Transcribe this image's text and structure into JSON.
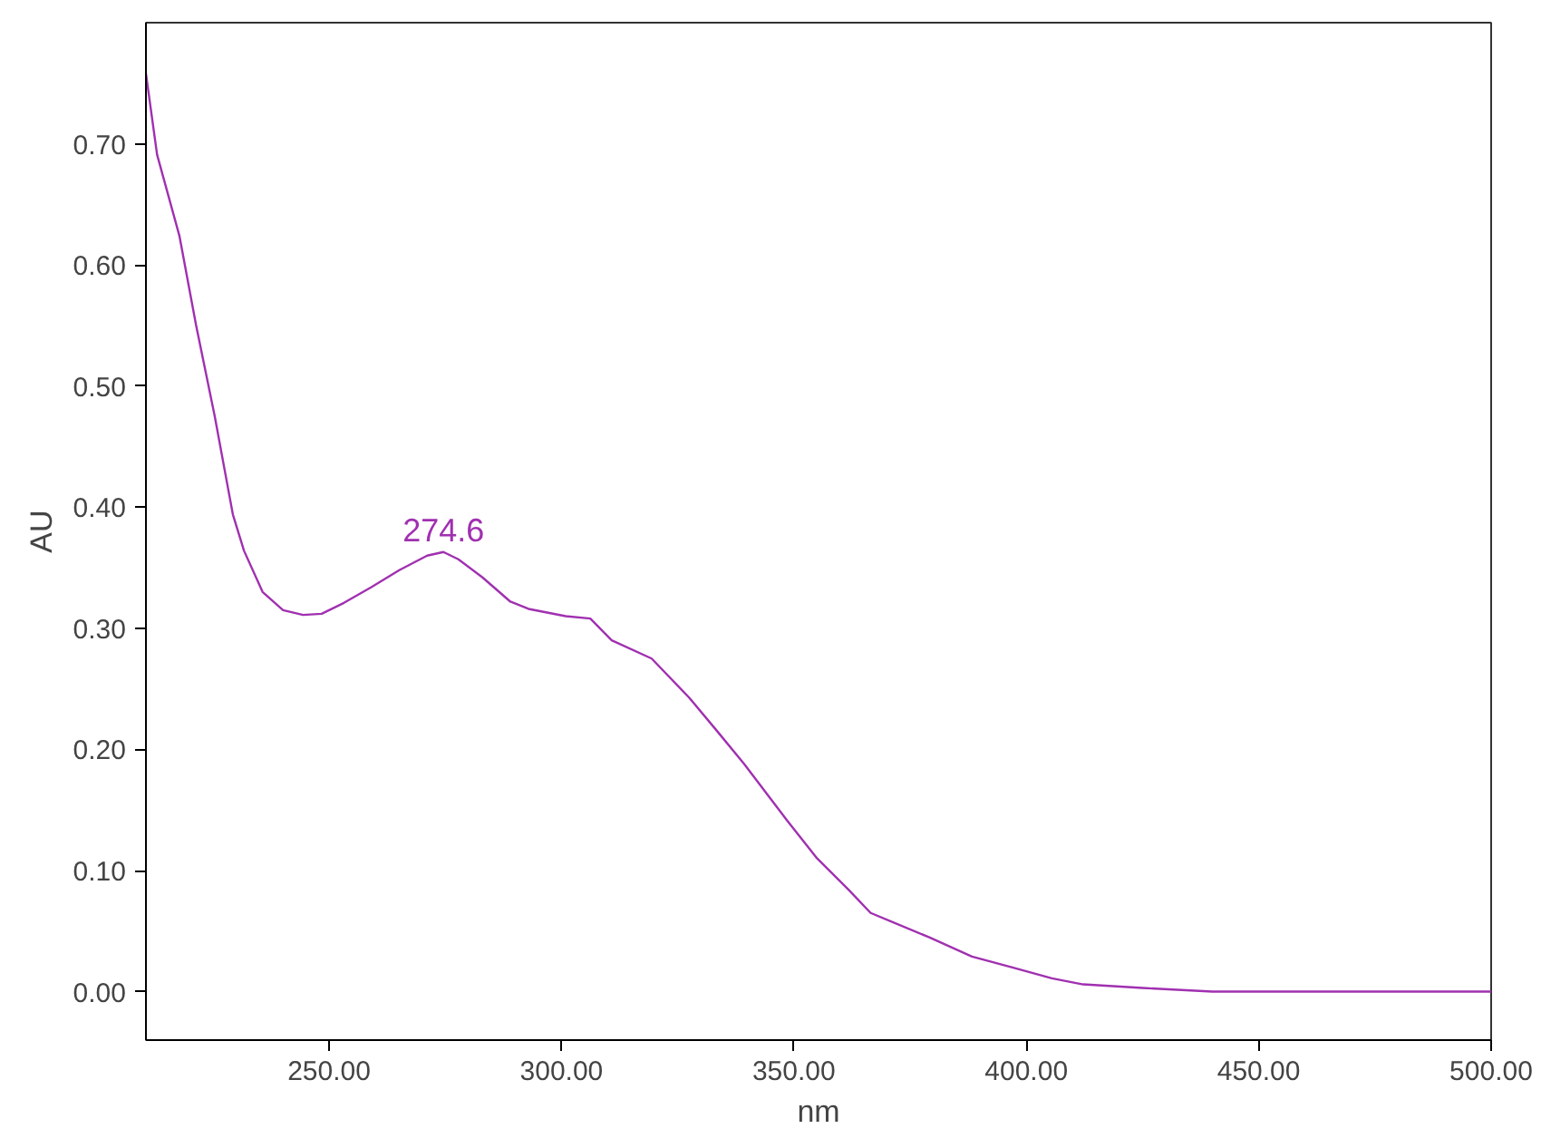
{
  "chart_data": {
    "type": "line",
    "xlabel": "nm",
    "ylabel": "AU",
    "x": [
      210.6,
      213,
      217.8,
      221.4,
      225.4,
      229.3,
      231.7,
      235.7,
      240.1,
      244.4,
      248.4,
      253.2,
      259.1,
      265.1,
      271.1,
      274.6,
      277.8,
      283,
      289,
      292.9,
      300.9,
      306.2,
      310.8,
      319.4,
      327.4,
      333.5,
      339.3,
      348.6,
      355,
      361.8,
      366.5,
      379,
      388.3,
      397,
      405.5,
      412.2,
      425,
      440,
      460,
      480,
      500
    ],
    "series": [
      {
        "color": "#a030b0",
        "values": [
          0.758,
          0.691,
          0.624,
          0.55,
          0.475,
          0.394,
          0.364,
          0.33,
          0.315,
          0.311,
          0.312,
          0.321,
          0.334,
          0.348,
          0.36,
          0.363,
          0.357,
          0.342,
          0.322,
          0.316,
          0.31,
          0.308,
          0.29,
          0.275,
          0.243,
          0.215,
          0.188,
          0.141,
          0.11,
          0.084,
          0.065,
          0.045,
          0.029,
          0.02,
          0.011,
          0.006,
          0.003,
          0.0,
          0.0,
          0.0,
          0.0
        ]
      }
    ],
    "annotations": [
      {
        "text": "274.6",
        "x": 274.6,
        "y": 0.363
      }
    ],
    "xlim": [
      210.6,
      500
    ],
    "ylim": [
      -0.04,
      0.8
    ],
    "xticks": [
      {
        "value": 250,
        "label": "250.00"
      },
      {
        "value": 300,
        "label": "300.00"
      },
      {
        "value": 350,
        "label": "350.00"
      },
      {
        "value": 400,
        "label": "400.00"
      },
      {
        "value": 450,
        "label": "450.00"
      },
      {
        "value": 500,
        "label": "500.00"
      }
    ],
    "yticks": [
      {
        "value": 0,
        "label": "0.00"
      },
      {
        "value": 0.1,
        "label": "0.10"
      },
      {
        "value": 0.2,
        "label": "0.20"
      },
      {
        "value": 0.3,
        "label": "0.30"
      },
      {
        "value": 0.4,
        "label": "0.40"
      },
      {
        "value": 0.5,
        "label": "0.50"
      },
      {
        "value": 0.6,
        "label": "0.60"
      },
      {
        "value": 0.7,
        "label": "0.70"
      }
    ],
    "grid": false,
    "marker": "none",
    "line_style": "solid"
  }
}
